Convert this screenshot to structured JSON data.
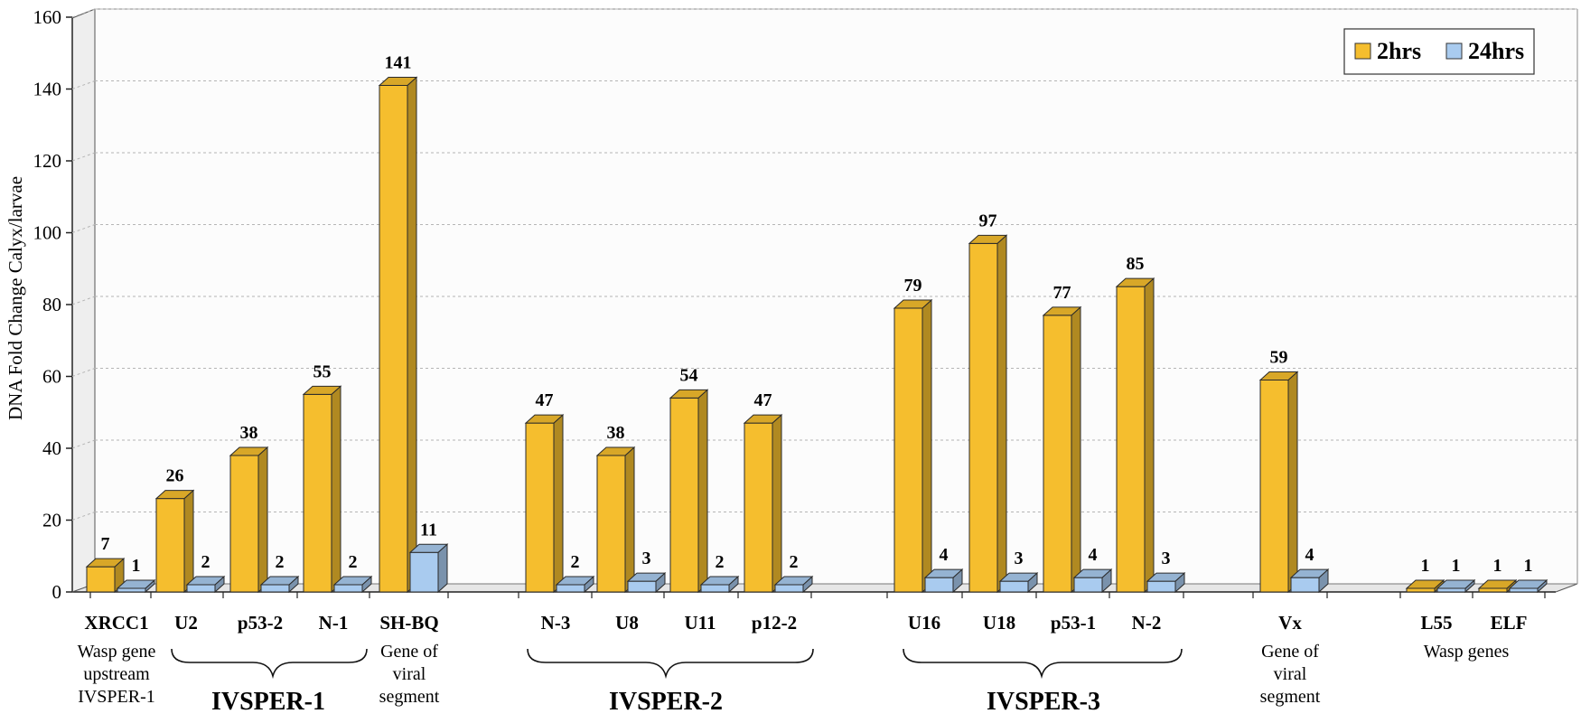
{
  "chart_data": {
    "type": "bar",
    "ylabel": "DNA Fold Change Calyx/larvae",
    "ylim": [
      0,
      160
    ],
    "yticks": [
      "0",
      "20",
      "40",
      "60",
      "80",
      "100",
      "120",
      "140",
      "160"
    ],
    "grid": true,
    "legend_position": "top-right",
    "categories": [
      "XRCC1",
      "U2",
      "p53-2",
      "N-1",
      "SH-BQ",
      "N-3",
      "U8",
      "U11",
      "p12-2",
      "U16",
      "U18",
      "p53-1",
      "N-2",
      "Vx",
      "L55",
      "ELF"
    ],
    "series": [
      {
        "name": "2hrs",
        "color": "#F5BE2E",
        "values": [
          7,
          26,
          38,
          55,
          141,
          47,
          38,
          54,
          47,
          79,
          97,
          77,
          85,
          59,
          1,
          1
        ]
      },
      {
        "name": "24hrs",
        "color": "#A9CBEF",
        "values": [
          1,
          2,
          2,
          2,
          11,
          2,
          3,
          2,
          2,
          4,
          3,
          4,
          3,
          4,
          1,
          1
        ]
      }
    ],
    "data_labels_2hrs": [
      "7",
      "26",
      "38",
      "55",
      "141",
      "47",
      "38",
      "54",
      "47",
      "79",
      "97",
      "77",
      "85",
      "59",
      "1",
      "1"
    ],
    "data_labels_24hrs": [
      "1",
      "2",
      "2",
      "2",
      "11",
      "2",
      "3",
      "2",
      "2",
      "4",
      "3",
      "4",
      "3",
      "4",
      "1",
      "1"
    ],
    "annotations": {
      "xrcc1_desc": [
        "Wasp gene",
        "upstream",
        "IVSPER-1"
      ],
      "shbq_desc": [
        "Gene of",
        "viral",
        "segment"
      ],
      "vx_desc": [
        "Gene of",
        "viral",
        "segment"
      ],
      "wasp_genes": "Wasp genes",
      "group1": "IVSPER-1",
      "group2": "IVSPER-2",
      "group3": "IVSPER-3"
    }
  }
}
